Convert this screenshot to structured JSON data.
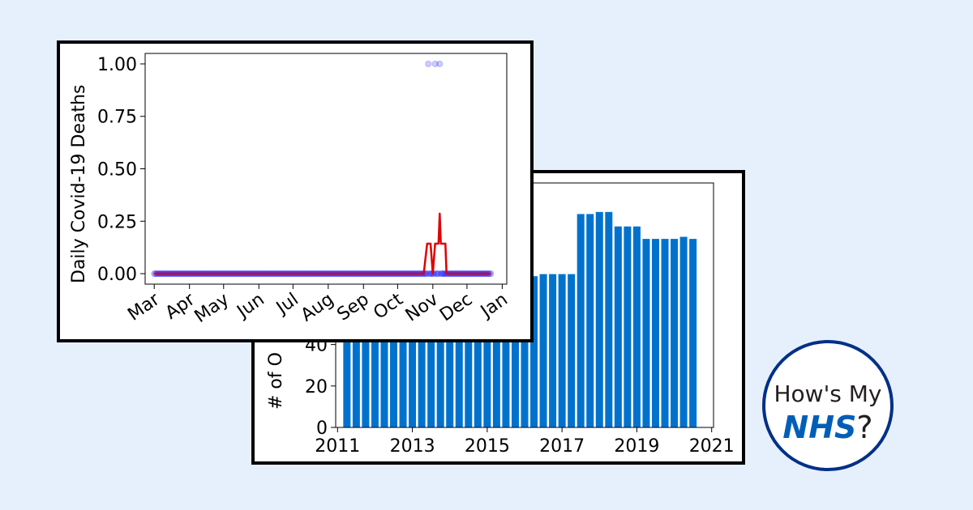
{
  "logo": {
    "line1": "How's My",
    "nhs": "NHS",
    "suffix": "?"
  },
  "chart_data": [
    {
      "type": "bar",
      "title": "",
      "xlabel": "",
      "ylabel": "# of O",
      "ylim": [
        0,
        118
      ],
      "xlim": [
        2010.95,
        2021.05
      ],
      "yticks": [
        0,
        20,
        40
      ],
      "xticks": [
        "2011",
        "2013",
        "2015",
        "2017",
        "2019",
        "2021"
      ],
      "x": [
        2011.25,
        2011.5,
        2011.75,
        2012.0,
        2012.25,
        2012.5,
        2012.75,
        2013.0,
        2013.25,
        2013.5,
        2013.75,
        2014.0,
        2014.25,
        2014.5,
        2014.75,
        2015.0,
        2015.25,
        2015.5,
        2015.75,
        2016.0,
        2016.25,
        2016.5,
        2016.75,
        2017.0,
        2017.25,
        2017.5,
        2017.75,
        2018.0,
        2018.25,
        2018.5,
        2018.75,
        2019.0,
        2019.25,
        2019.5,
        2019.75,
        2020.0,
        2020.25,
        2020.5
      ],
      "values": [
        73,
        73,
        73,
        73,
        73,
        73,
        73,
        73,
        73,
        73,
        73,
        73,
        73,
        73,
        73,
        73,
        73,
        73,
        73,
        73,
        73,
        74,
        74,
        74,
        74,
        103,
        103,
        104,
        104,
        97,
        97,
        97,
        91,
        91,
        91,
        91,
        92,
        91
      ],
      "color": "#0072ce",
      "grid": false
    },
    {
      "type": "line",
      "title": "",
      "xlabel": "",
      "ylabel": "Daily Covid-19 Deaths",
      "ylim": [
        -0.05,
        1.05
      ],
      "yticks": [
        "0.00",
        "0.25",
        "0.50",
        "0.75",
        "1.00"
      ],
      "xticks": [
        "Mar",
        "Apr",
        "May",
        "Jun",
        "Jul",
        "Aug",
        "Sep",
        "Oct",
        "Nov",
        "Dec",
        "Jan"
      ],
      "xrange": [
        "2020-02-22",
        "2021-01-05"
      ],
      "grid": false,
      "series": [
        {
          "kind": "scatter",
          "color": "#0000ff",
          "x_start": "2020-03-01",
          "x_end": "2020-12-22",
          "default_value": 0,
          "points": [
            {
              "x": "2020-10-28",
              "y": 1
            },
            {
              "x": "2020-11-03",
              "y": 1
            },
            {
              "x": "2020-11-07",
              "y": 1
            }
          ]
        },
        {
          "kind": "line",
          "color": "#e00000",
          "x": [
            "2020-03-01",
            "2020-10-24",
            "2020-10-27",
            "2020-10-30",
            "2020-11-01",
            "2020-11-03",
            "2020-11-06",
            "2020-11-07",
            "2020-11-08",
            "2020-11-09",
            "2020-11-12",
            "2020-11-13",
            "2020-12-22"
          ],
          "y": [
            0,
            0,
            0.143,
            0.143,
            0,
            0.143,
            0.143,
            0.286,
            0.143,
            0.143,
            0.143,
            0,
            0
          ]
        }
      ]
    }
  ]
}
